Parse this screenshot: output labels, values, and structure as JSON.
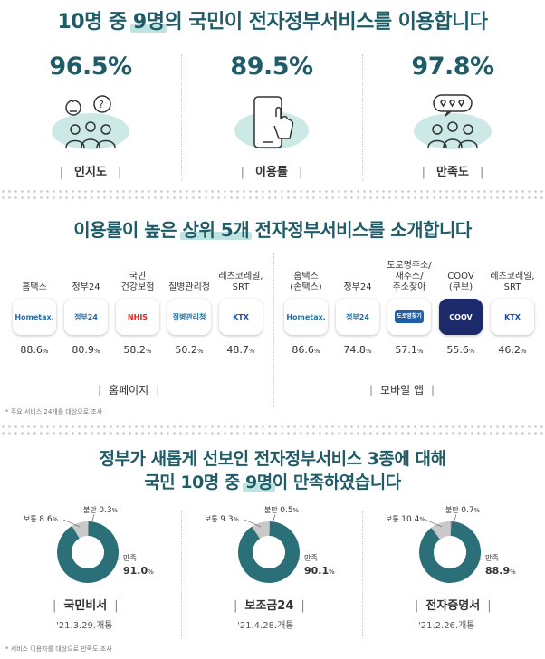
{
  "section1": {
    "title_pre": "10명 중 ",
    "title_hl": "9명",
    "title_post": "의 국민이 전자정부서비스를 이용합니다",
    "stats": [
      {
        "pct": "96.5%",
        "label": "인지도",
        "icon": "people-question-icon"
      },
      {
        "pct": "89.5%",
        "label": "이용률",
        "icon": "hand-phone-icon"
      },
      {
        "pct": "97.8%",
        "label": "만족도",
        "icon": "people-heart-icon"
      }
    ]
  },
  "section2": {
    "title_pre": "이용률이 높은 ",
    "title_hl": "상위 5개",
    "title_post": " 전자정부서비스를 소개합니다",
    "web_label": "홈페이지",
    "mobile_label": "모바일 앱",
    "web": [
      {
        "name": "홈택스",
        "logo": "Hometax.",
        "value": "88.6",
        "unit": "%"
      },
      {
        "name": "정부24",
        "logo": "정부24",
        "value": "80.9",
        "unit": "%"
      },
      {
        "name": "국민\n건강보험",
        "logo": "NHIS",
        "value": "58.2",
        "unit": "%"
      },
      {
        "name": "질병관리청",
        "logo": "질병관리청",
        "value": "50.2",
        "unit": "%"
      },
      {
        "name": "레츠코레일,\nSRT",
        "logo": "KTX",
        "value": "48.7",
        "unit": "%"
      }
    ],
    "mobile": [
      {
        "name": "홈택스\n(손택스)",
        "logo": "Hometax.",
        "value": "86.6",
        "unit": "%"
      },
      {
        "name": "정부24",
        "logo": "정부24",
        "value": "74.8",
        "unit": "%"
      },
      {
        "name": "도로명주소/\n새주소/\n주소찾아",
        "logo": "도로명찾기",
        "value": "57.1",
        "unit": "%"
      },
      {
        "name": "COOV\n(쿠브)",
        "logo": "COOV",
        "value": "55.6",
        "unit": "%"
      },
      {
        "name": "레츠코레일,\nSRT",
        "logo": "KTX",
        "value": "46.2",
        "unit": "%"
      }
    ],
    "note": "* 주요 서비스 24개를 대상으로 조사"
  },
  "section3": {
    "title_line1": "정부가 새롭게 선보인 전자정부서비스 3종에 대해",
    "title_line2_pre": "국민 10명 중 ",
    "title_line2_hl": "9명",
    "title_line2_post": "이 만족하였습니다",
    "labels": {
      "satisfied": "만족",
      "normal": "보통",
      "unsatisfied": "불만"
    },
    "note": "* 서비스 이용자를 대상으로 만족도 조사"
  },
  "chart_data": [
    {
      "type": "pie",
      "name": "국민비서",
      "date": "'21.3.29.개통",
      "categories": [
        "만족",
        "보통",
        "불만"
      ],
      "values": [
        91.0,
        8.6,
        0.3
      ],
      "labels": [
        "91.0",
        "8.6",
        "0.3"
      ]
    },
    {
      "type": "pie",
      "name": "보조금24",
      "date": "'21.4.28.개통",
      "categories": [
        "만족",
        "보통",
        "불만"
      ],
      "values": [
        90.1,
        9.3,
        0.5
      ],
      "labels": [
        "90.1",
        "9.3",
        "0.5"
      ]
    },
    {
      "type": "pie",
      "name": "전자증명서",
      "date": "'21.2.26.개통",
      "categories": [
        "만족",
        "보통",
        "불만"
      ],
      "values": [
        88.9,
        10.4,
        0.7
      ],
      "labels": [
        "88.9",
        "10.4",
        "0.7"
      ]
    }
  ],
  "colors": {
    "teal": "#2b6f78",
    "gray": "#c9c9c9",
    "pink": "#e8a0a8",
    "title": "#1f5c68",
    "highlight": "#bfe3e0"
  }
}
